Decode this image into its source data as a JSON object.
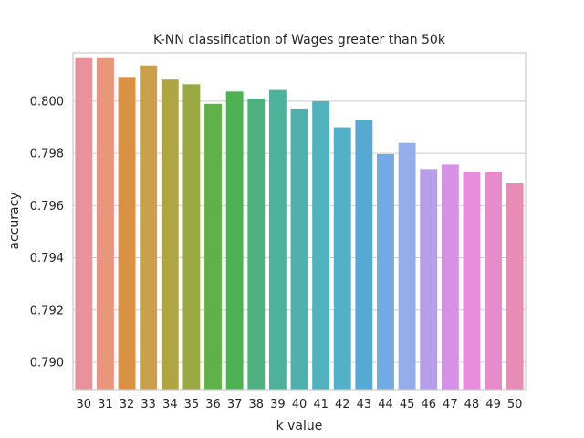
{
  "chart_data": {
    "type": "bar",
    "title": "K-NN classification of Wages greater than 50k",
    "xlabel": "k value",
    "ylabel": "accuracy",
    "categories": [
      "30",
      "31",
      "32",
      "33",
      "34",
      "35",
      "36",
      "37",
      "38",
      "39",
      "40",
      "41",
      "42",
      "43",
      "44",
      "45",
      "46",
      "47",
      "48",
      "49",
      "50"
    ],
    "values": [
      0.80165,
      0.80165,
      0.80093,
      0.80137,
      0.80083,
      0.80065,
      0.7999,
      0.80037,
      0.8001,
      0.80043,
      0.79972,
      0.8,
      0.799,
      0.79927,
      0.79797,
      0.7984,
      0.7974,
      0.79757,
      0.7973,
      0.7973,
      0.79685
    ],
    "colors": [
      "#e8939b",
      "#e9977c",
      "#d99144",
      "#c9a14a",
      "#b0a545",
      "#9aa843",
      "#60b04c",
      "#4eb153",
      "#4fb17f",
      "#4eb29b",
      "#50b0ae",
      "#51b1bc",
      "#53b0c9",
      "#55a9d3",
      "#72aae3",
      "#94aeea",
      "#b79ee9",
      "#d690e8",
      "#e68ddb",
      "#e88bca",
      "#e88cb7"
    ],
    "ylim": [
      0.78895,
      0.80185
    ],
    "yticks": [
      0.79,
      0.792,
      0.794,
      0.796,
      0.798,
      0.8
    ],
    "ytick_labels": [
      "0.790",
      "0.792",
      "0.794",
      "0.796",
      "0.798",
      "0.800"
    ],
    "grid": true
  }
}
